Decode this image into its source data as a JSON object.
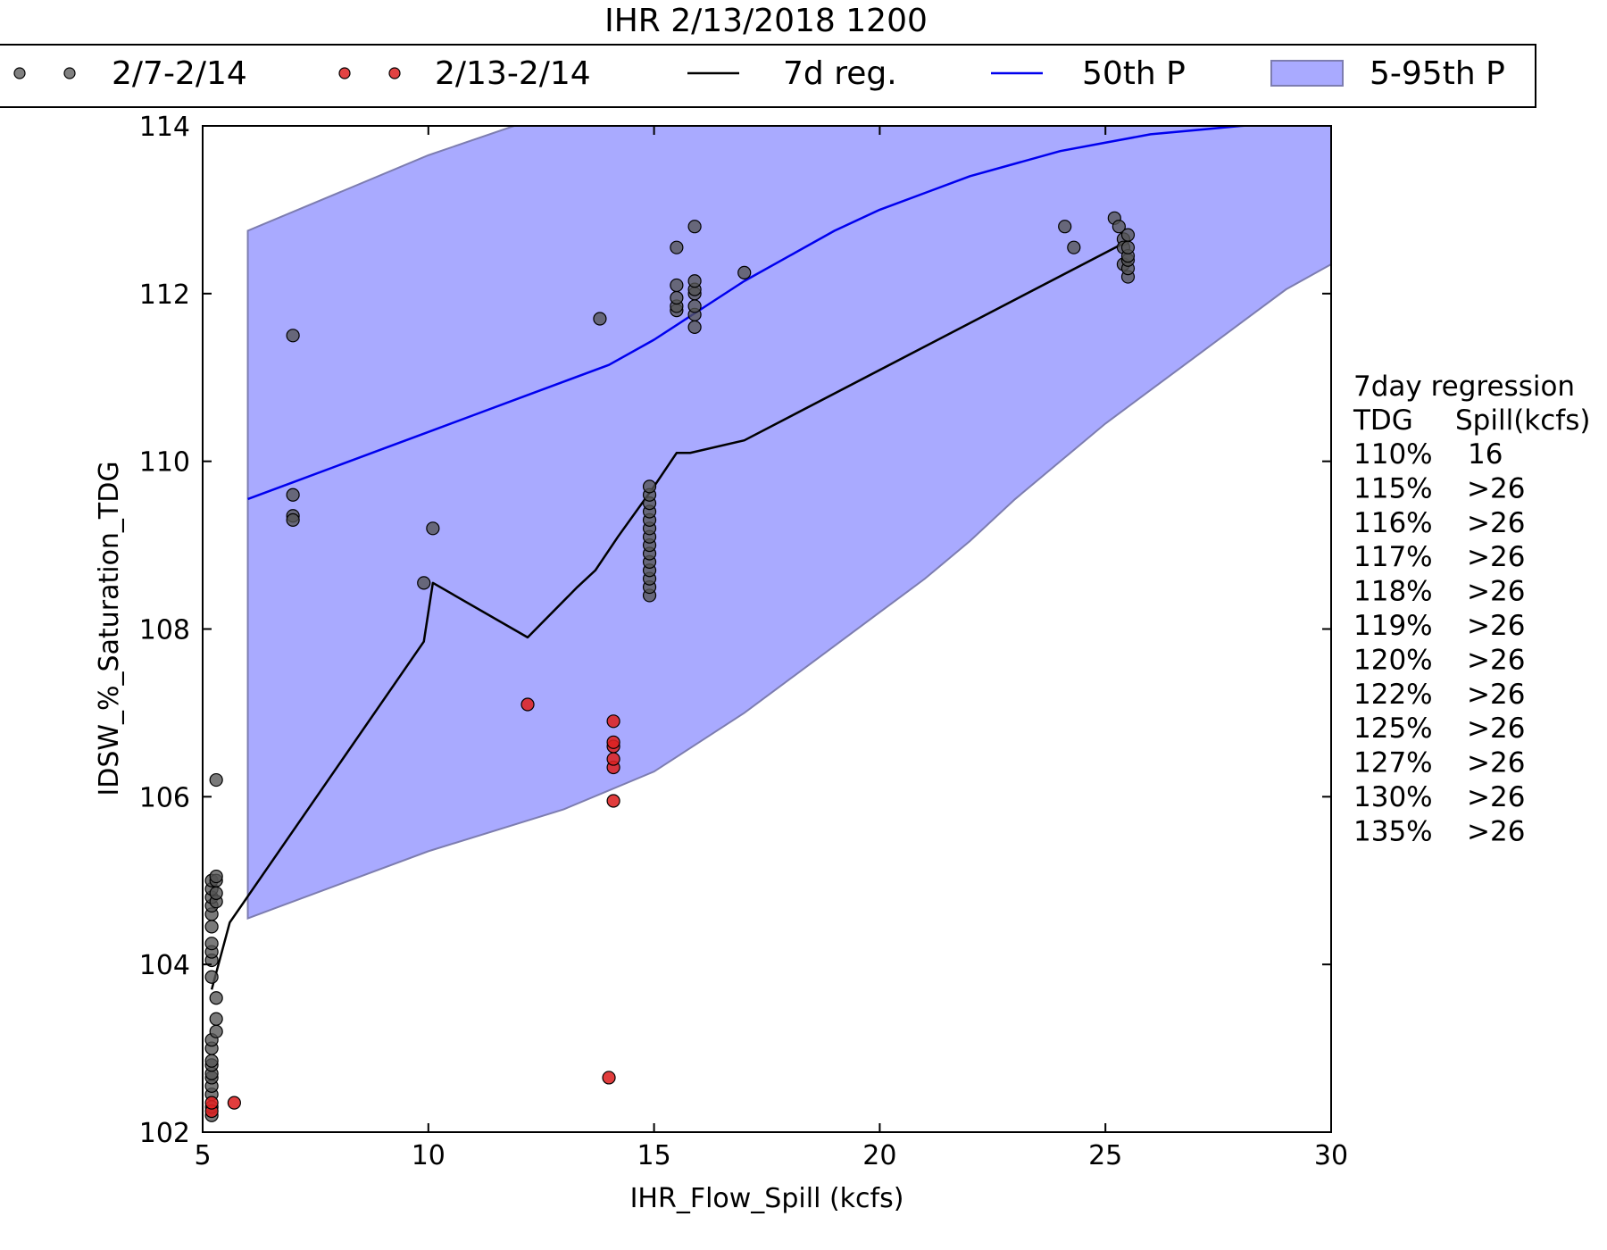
{
  "chart_data": {
    "type": "scatter",
    "title": "IHR 2/13/2018 1200",
    "xlabel": "IHR_Flow_Spill (kcfs)",
    "ylabel": "IDSW_%_Saturation_TDG",
    "xlim": [
      5,
      30
    ],
    "ylim": [
      102,
      114
    ],
    "xticks": [
      5,
      10,
      15,
      20,
      25,
      30
    ],
    "yticks": [
      102,
      104,
      106,
      108,
      110,
      112,
      114
    ],
    "grid": false,
    "legend_position": "top",
    "colors": {
      "week_points": "#555555",
      "day_points": "#dd2222",
      "regression": "#000000",
      "median": "#0000ee",
      "band_fill": "#a9aaff",
      "band_edge": "#7d7db0"
    },
    "legend": [
      {
        "key": "week",
        "label": "2/7-2/14",
        "marker": "dot-pair"
      },
      {
        "key": "day",
        "label": "2/13-2/14",
        "marker": "dot-pair"
      },
      {
        "key": "reg",
        "label": "7d reg.",
        "marker": "line"
      },
      {
        "key": "p50",
        "label": "50th P",
        "marker": "line"
      },
      {
        "key": "band",
        "label": "5-95th P",
        "marker": "patch"
      }
    ],
    "series": [
      {
        "name": "2/7-2/14",
        "kind": "points",
        "points": [
          [
            5.2,
            102.2
          ],
          [
            5.2,
            102.3
          ],
          [
            5.2,
            102.45
          ],
          [
            5.2,
            102.55
          ],
          [
            5.2,
            102.65
          ],
          [
            5.2,
            102.7
          ],
          [
            5.2,
            102.8
          ],
          [
            5.2,
            102.85
          ],
          [
            5.2,
            103.0
          ],
          [
            5.2,
            103.1
          ],
          [
            5.3,
            103.2
          ],
          [
            5.3,
            103.35
          ],
          [
            5.3,
            103.6
          ],
          [
            5.2,
            103.85
          ],
          [
            5.2,
            104.05
          ],
          [
            5.2,
            104.15
          ],
          [
            5.2,
            104.25
          ],
          [
            5.2,
            104.45
          ],
          [
            5.2,
            104.6
          ],
          [
            5.2,
            104.7
          ],
          [
            5.2,
            104.8
          ],
          [
            5.2,
            104.9
          ],
          [
            5.2,
            105.0
          ],
          [
            5.3,
            104.75
          ],
          [
            5.3,
            104.85
          ],
          [
            5.3,
            105.0
          ],
          [
            5.3,
            105.05
          ],
          [
            5.3,
            106.2
          ],
          [
            7.0,
            111.5
          ],
          [
            7.0,
            109.6
          ],
          [
            7.0,
            109.35
          ],
          [
            7.0,
            109.3
          ],
          [
            9.9,
            108.55
          ],
          [
            10.1,
            109.2
          ],
          [
            13.8,
            111.7
          ],
          [
            14.9,
            108.4
          ],
          [
            14.9,
            108.5
          ],
          [
            14.9,
            108.6
          ],
          [
            14.9,
            108.7
          ],
          [
            14.9,
            108.8
          ],
          [
            14.9,
            108.9
          ],
          [
            14.9,
            109.0
          ],
          [
            14.9,
            109.1
          ],
          [
            14.9,
            109.2
          ],
          [
            14.9,
            109.3
          ],
          [
            14.9,
            109.4
          ],
          [
            14.9,
            109.5
          ],
          [
            14.9,
            109.6
          ],
          [
            14.9,
            109.7
          ],
          [
            15.5,
            111.8
          ],
          [
            15.5,
            111.85
          ],
          [
            15.5,
            111.95
          ],
          [
            15.5,
            112.1
          ],
          [
            15.5,
            112.55
          ],
          [
            15.9,
            111.6
          ],
          [
            15.9,
            111.75
          ],
          [
            15.9,
            111.85
          ],
          [
            15.9,
            112.0
          ],
          [
            15.9,
            112.05
          ],
          [
            15.9,
            112.15
          ],
          [
            15.9,
            112.8
          ],
          [
            17.0,
            112.25
          ],
          [
            24.1,
            112.8
          ],
          [
            24.3,
            112.55
          ],
          [
            25.2,
            112.9
          ],
          [
            25.3,
            112.8
          ],
          [
            25.4,
            112.65
          ],
          [
            25.4,
            112.55
          ],
          [
            25.4,
            112.35
          ],
          [
            25.5,
            112.2
          ],
          [
            25.5,
            112.3
          ],
          [
            25.5,
            112.4
          ],
          [
            25.5,
            112.45
          ],
          [
            25.5,
            112.55
          ],
          [
            25.5,
            112.7
          ]
        ]
      },
      {
        "name": "2/13-2/14",
        "kind": "points",
        "points": [
          [
            5.2,
            102.25
          ],
          [
            5.2,
            102.35
          ],
          [
            5.7,
            102.35
          ],
          [
            12.2,
            107.1
          ],
          [
            14.0,
            102.65
          ],
          [
            14.1,
            105.95
          ],
          [
            14.1,
            106.35
          ],
          [
            14.1,
            106.45
          ],
          [
            14.1,
            106.6
          ],
          [
            14.1,
            106.65
          ],
          [
            14.1,
            106.9
          ]
        ]
      },
      {
        "name": "7d reg.",
        "kind": "line",
        "points": [
          [
            5.2,
            103.7
          ],
          [
            5.6,
            104.5
          ],
          [
            9.9,
            107.85
          ],
          [
            10.1,
            108.55
          ],
          [
            12.2,
            107.9
          ],
          [
            13.3,
            108.5
          ],
          [
            13.7,
            108.7
          ],
          [
            14.2,
            109.1
          ],
          [
            15.0,
            109.7
          ],
          [
            15.5,
            110.1
          ],
          [
            15.8,
            110.1
          ],
          [
            17.0,
            110.25
          ],
          [
            25.4,
            112.6
          ]
        ]
      },
      {
        "name": "50th P",
        "kind": "line",
        "points": [
          [
            6,
            109.55
          ],
          [
            7,
            109.75
          ],
          [
            8,
            109.95
          ],
          [
            9,
            110.15
          ],
          [
            10,
            110.35
          ],
          [
            11,
            110.55
          ],
          [
            12,
            110.75
          ],
          [
            13,
            110.95
          ],
          [
            14,
            111.15
          ],
          [
            15,
            111.45
          ],
          [
            16,
            111.8
          ],
          [
            17,
            112.15
          ],
          [
            18,
            112.45
          ],
          [
            19,
            112.75
          ],
          [
            20,
            113.0
          ],
          [
            21,
            113.2
          ],
          [
            22,
            113.4
          ],
          [
            23,
            113.55
          ],
          [
            24,
            113.7
          ],
          [
            25,
            113.8
          ],
          [
            26,
            113.9
          ],
          [
            27,
            113.95
          ],
          [
            28,
            114.0
          ],
          [
            29,
            114.03
          ],
          [
            30,
            114.05
          ]
        ]
      },
      {
        "name": "5-95th P",
        "kind": "band",
        "upper": [
          [
            6,
            112.75
          ],
          [
            10,
            113.65
          ],
          [
            11.9,
            114.0
          ],
          [
            30,
            114.0
          ]
        ],
        "lower": [
          [
            6,
            104.55
          ],
          [
            8,
            104.95
          ],
          [
            10,
            105.35
          ],
          [
            13,
            105.85
          ],
          [
            15,
            106.3
          ],
          [
            16,
            106.65
          ],
          [
            17,
            107.0
          ],
          [
            18,
            107.4
          ],
          [
            19,
            107.8
          ],
          [
            20,
            108.2
          ],
          [
            21,
            108.6
          ],
          [
            22,
            109.05
          ],
          [
            23,
            109.55
          ],
          [
            24,
            110.0
          ],
          [
            25,
            110.45
          ],
          [
            26,
            110.85
          ],
          [
            27,
            111.25
          ],
          [
            28,
            111.65
          ],
          [
            29,
            112.05
          ],
          [
            30,
            112.35
          ]
        ]
      }
    ]
  },
  "regression_table": {
    "title": "7day regression",
    "col_tdg": "TDG",
    "col_spill": "Spill(kcfs)",
    "rows": [
      {
        "tdg": "110%",
        "spill": "16"
      },
      {
        "tdg": "115%",
        "spill": ">26"
      },
      {
        "tdg": "116%",
        "spill": ">26"
      },
      {
        "tdg": "117%",
        "spill": ">26"
      },
      {
        "tdg": "118%",
        "spill": ">26"
      },
      {
        "tdg": "119%",
        "spill": ">26"
      },
      {
        "tdg": "120%",
        "spill": ">26"
      },
      {
        "tdg": "122%",
        "spill": ">26"
      },
      {
        "tdg": "125%",
        "spill": ">26"
      },
      {
        "tdg": "127%",
        "spill": ">26"
      },
      {
        "tdg": "130%",
        "spill": ">26"
      },
      {
        "tdg": "135%",
        "spill": ">26"
      }
    ]
  }
}
